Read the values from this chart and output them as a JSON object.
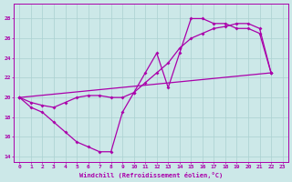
{
  "xlabel": "Windchill (Refroidissement éolien,°C)",
  "xlim": [
    -0.5,
    23.5
  ],
  "ylim": [
    13.5,
    29.5
  ],
  "yticks": [
    14,
    16,
    18,
    20,
    22,
    24,
    26,
    28
  ],
  "xticks": [
    0,
    1,
    2,
    3,
    4,
    5,
    6,
    7,
    8,
    9,
    10,
    11,
    12,
    13,
    14,
    15,
    16,
    17,
    18,
    19,
    20,
    21,
    22,
    23
  ],
  "bg_color": "#cce8e8",
  "grid_color": "#aad0d0",
  "line_color": "#aa00aa",
  "line1_x": [
    0,
    1,
    2,
    3,
    4,
    5,
    6,
    7,
    8,
    9,
    10,
    11,
    12,
    13,
    14,
    15,
    16,
    17,
    18,
    19,
    20,
    21,
    22
  ],
  "line1_y": [
    20,
    19,
    18.5,
    17.5,
    16.5,
    15.5,
    15,
    14.5,
    14.5,
    18.5,
    20.5,
    22.5,
    24.5,
    21,
    24.5,
    28,
    28,
    27.5,
    27.5,
    27,
    27,
    26.5,
    22.5
  ],
  "line2_x": [
    0,
    1,
    2,
    3,
    4,
    5,
    6,
    7,
    8,
    9,
    10,
    11,
    12,
    13,
    14,
    15,
    16,
    17,
    18,
    19,
    20,
    21,
    22
  ],
  "line2_y": [
    20,
    19.5,
    19.2,
    19,
    19.5,
    20,
    20.2,
    20.2,
    20,
    20,
    20.5,
    21.5,
    22.5,
    23.5,
    25,
    26,
    26.5,
    27,
    27.2,
    27.5,
    27.5,
    27,
    22.5
  ],
  "line3_x": [
    0,
    22
  ],
  "line3_y": [
    20,
    22.5
  ],
  "figsize": [
    3.2,
    2.0
  ],
  "dpi": 100
}
